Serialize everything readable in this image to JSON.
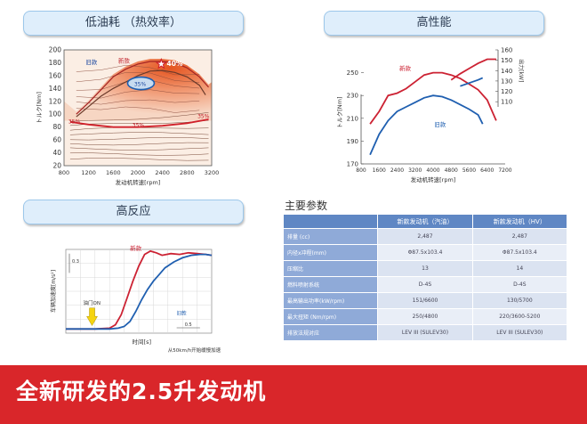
{
  "panels": {
    "low_fuel": "低油耗 （热效率）",
    "high_perf": "高性能",
    "high_resp": "高反应"
  },
  "chart_data": [
    {
      "type": "contour",
      "xlabel": "发动机转速[rpm]",
      "ylabel": "トルク[Nm]",
      "xlim": [
        800,
        3200
      ],
      "ylim": [
        20,
        200
      ],
      "x_ticks": [
        800,
        1200,
        1600,
        2000,
        2400,
        2800,
        3200
      ],
      "y_ticks": [
        20,
        40,
        60,
        80,
        100,
        120,
        140,
        160,
        180,
        200
      ],
      "annotations": [
        "旧款",
        "新款",
        "40%",
        "35%",
        "35%",
        "35%",
        "35%"
      ],
      "old_region": {
        "x": [
          1000,
          1200,
          1400,
          1600,
          1800,
          2000,
          2200,
          2400,
          2600,
          2800,
          3000,
          3100
        ],
        "y": [
          96,
          112,
          128,
          140,
          150,
          160,
          167,
          168,
          165,
          158,
          145,
          130
        ]
      },
      "new_region": {
        "x": [
          1000,
          1200,
          1400,
          1600,
          1800,
          2000,
          2200,
          2400,
          2600,
          2800,
          3000,
          3150
        ],
        "y": [
          100,
          118,
          138,
          158,
          170,
          178,
          182,
          182,
          180,
          172,
          158,
          142
        ]
      },
      "efficiency_35_line": {
        "x": [
          900,
          1200,
          1600,
          2000,
          2400,
          2800,
          3150
        ],
        "y": [
          88,
          84,
          80,
          80,
          82,
          86,
          92
        ]
      }
    },
    {
      "type": "line",
      "xlabel": "发动机转速[rpm]",
      "ylabel": "トルク[Nm]",
      "y2label": "出力[kW]",
      "xlim": [
        800,
        7200
      ],
      "ylim": [
        170,
        270
      ],
      "y2lim": [
        100,
        160
      ],
      "x_ticks": [
        800,
        1600,
        2400,
        3200,
        4000,
        4800,
        5600,
        6400,
        7200
      ],
      "y_ticks": [
        170,
        190,
        210,
        230,
        250
      ],
      "y2_ticks": [
        110,
        120,
        130,
        140,
        150,
        160
      ],
      "legend": [
        "新款",
        "旧款"
      ],
      "colors": {
        "new": "#cc2233",
        "old": "#1f5fb0"
      },
      "series": [
        {
          "name": "新款",
          "axis": "torque",
          "x": [
            1200,
            1600,
            2000,
            2400,
            2800,
            3200,
            3600,
            4000,
            4400,
            4800,
            5200,
            5600,
            6000,
            6400,
            6800
          ],
          "values": [
            205,
            216,
            230,
            232,
            236,
            242,
            248,
            250,
            250,
            248,
            245,
            240,
            235,
            226,
            208
          ]
        },
        {
          "name": "旧款",
          "axis": "torque",
          "x": [
            1200,
            1600,
            2000,
            2400,
            2800,
            3200,
            3600,
            4000,
            4400,
            4800,
            5200,
            5600,
            6000,
            6200
          ],
          "values": [
            178,
            196,
            208,
            216,
            220,
            224,
            228,
            230,
            229,
            226,
            222,
            218,
            213,
            205
          ]
        },
        {
          "name": "新款",
          "axis": "power",
          "x": [
            4800,
            5200,
            5600,
            6000,
            6400,
            6800
          ],
          "values": [
            131,
            137,
            142,
            147,
            151,
            151
          ]
        },
        {
          "name": "旧款",
          "axis": "power",
          "x": [
            5200,
            5600,
            6000,
            6200
          ],
          "values": [
            125,
            128,
            131,
            133
          ]
        }
      ]
    },
    {
      "type": "line",
      "xlabel": "时间[s]",
      "ylabel": "车辆加速度[m/s²]",
      "y_marker_label": "0.3",
      "x_marker_label": "0.5",
      "event_label": "油门ON",
      "note": "从50km/h开始缓慢加速",
      "xlim": [
        0,
        10
      ],
      "ylim": [
        0,
        1
      ],
      "legend": [
        "新款",
        "旧款"
      ],
      "series": [
        {
          "name": "新款",
          "x": [
            0,
            2.0,
            3.0,
            3.4,
            3.8,
            4.2,
            4.6,
            5.0,
            5.4,
            5.8,
            6.2,
            6.6,
            7.2,
            7.8,
            8.4,
            9.0,
            9.6,
            10
          ],
          "values": [
            0.05,
            0.05,
            0.06,
            0.1,
            0.22,
            0.42,
            0.62,
            0.8,
            0.94,
            0.98,
            0.96,
            0.93,
            0.95,
            0.94,
            0.96,
            0.95,
            0.94,
            0.93
          ]
        },
        {
          "name": "旧款",
          "x": [
            0,
            2.0,
            3.0,
            3.6,
            4.0,
            4.4,
            4.8,
            5.2,
            5.6,
            6.0,
            6.4,
            6.8,
            7.4,
            8.0,
            8.6,
            9.2,
            9.6,
            10
          ],
          "values": [
            0.05,
            0.05,
            0.05,
            0.06,
            0.08,
            0.14,
            0.26,
            0.4,
            0.52,
            0.62,
            0.7,
            0.78,
            0.85,
            0.9,
            0.93,
            0.94,
            0.94,
            0.93
          ]
        }
      ]
    }
  ],
  "params": {
    "title": "主要参数",
    "headers": [
      "",
      "新款发动机（汽油）",
      "新款发动机（HV）"
    ],
    "rows": [
      [
        "排量 (cc)",
        "2,487",
        "2,487"
      ],
      [
        "内径x冲程(mm)",
        "Φ87.5x103.4",
        "Φ87.5x103.4"
      ],
      [
        "压缩比",
        "13",
        "14"
      ],
      [
        "燃料喷射系统",
        "D-4S",
        "D-4S"
      ],
      [
        "最高输出功率(kW/rpm)",
        "151/6600",
        "130/5700"
      ],
      [
        "最大扭矩 (Nm/rpm)",
        "250/4800",
        "220/3600-5200"
      ],
      [
        "排放法规对应",
        "LEV III (SULEV30)",
        "LEV III (SULEV30)"
      ]
    ]
  },
  "banner": {
    "title": "全新研发的2.5升发动机"
  }
}
